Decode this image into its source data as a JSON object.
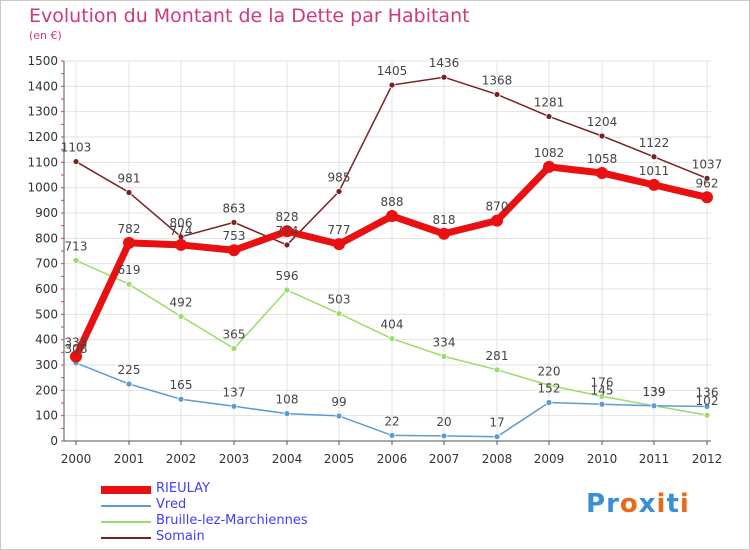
{
  "chart_data": {
    "type": "line",
    "title": "Evolution du Montant de la Dette par Habitant",
    "subtitle": "(en €)",
    "categories": [
      "2000",
      "2001",
      "2002",
      "2003",
      "2004",
      "2005",
      "2006",
      "2007",
      "2008",
      "2009",
      "2010",
      "2011",
      "2012"
    ],
    "y_ticks": [
      "0",
      "100",
      "200",
      "300",
      "400",
      "500",
      "600",
      "700",
      "800",
      "900",
      "1000",
      "1100",
      "1200",
      "1300",
      "1400",
      "1500"
    ],
    "ylim": [
      0,
      1500
    ],
    "grid": true,
    "legend_position": "bottom-left",
    "series": [
      {
        "name": "RIEULAY",
        "color": "#e81010",
        "values": [
          333,
          782,
          774,
          753,
          828,
          777,
          888,
          818,
          870,
          1082,
          1058,
          1011,
          962
        ]
      },
      {
        "name": "Vred",
        "color": "#5b9bd5",
        "values": [
          308,
          225,
          165,
          137,
          108,
          99,
          22,
          20,
          17,
          152,
          145,
          139,
          136
        ]
      },
      {
        "name": "Bruille-lez-Marchiennes",
        "color": "#99dd66",
        "values": [
          713,
          619,
          492,
          365,
          596,
          503,
          404,
          334,
          281,
          220,
          176,
          139,
          102
        ]
      },
      {
        "name": "Somain",
        "color": "#7a2020",
        "values": [
          1103,
          981,
          806,
          863,
          774,
          985,
          1405,
          1436,
          1368,
          1281,
          1204,
          1122,
          1037
        ]
      }
    ]
  },
  "logo": {
    "text": "Proxiti"
  }
}
